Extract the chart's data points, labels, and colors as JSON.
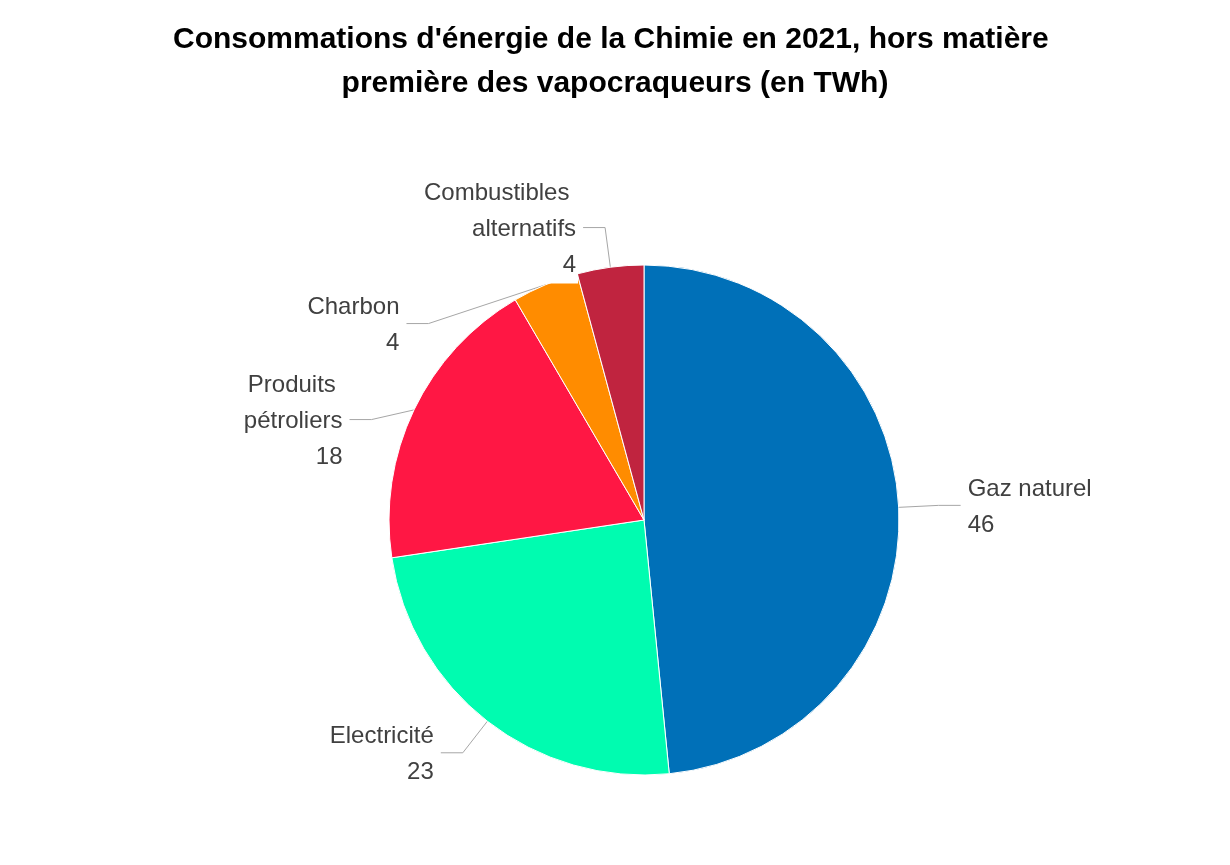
{
  "chart_data": {
    "type": "pie",
    "title": "Consommations d'énergie de la Chimie en 2021, hors matière première des vapocraqueurs (en TWh)",
    "categories": [
      "Gaz naturel",
      "Electricité",
      "Produits pétroliers",
      "Charbon",
      "Combustibles alternatifs"
    ],
    "values": [
      46,
      23,
      18,
      4,
      4
    ],
    "colors": [
      "#0070b8",
      "#00fcb0",
      "#ff1744",
      "#ff8c00",
      "#c0243f"
    ],
    "data_labels": true,
    "legend": false
  }
}
